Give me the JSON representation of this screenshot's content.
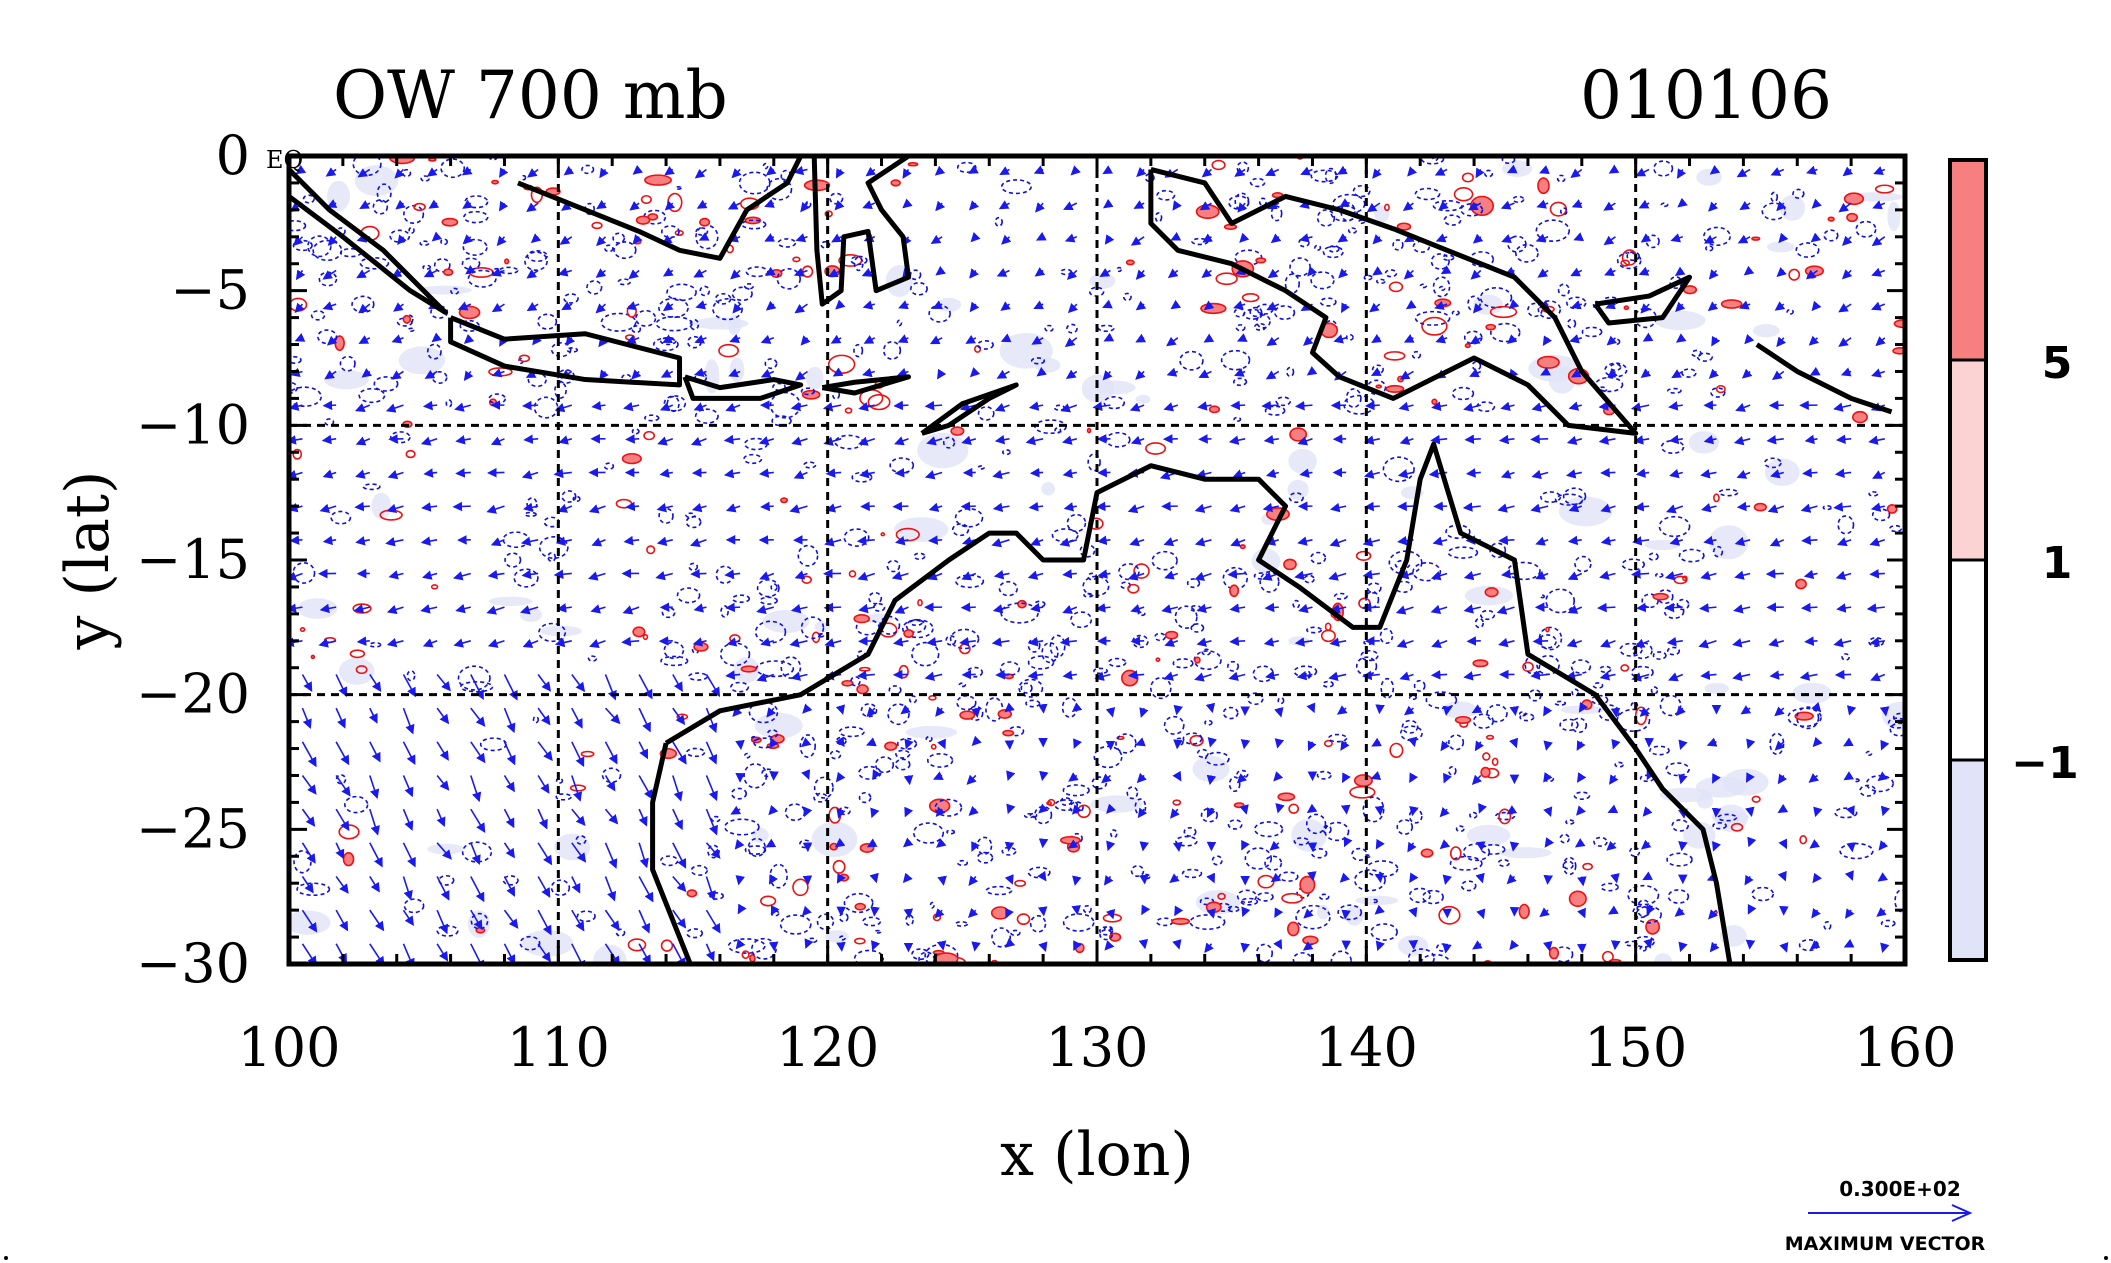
{
  "figure": {
    "title_left": "OW 700 mb",
    "title_right": "010106",
    "eq_label": "EQ",
    "xlabel": "x (lon)",
    "ylabel": "y (lat)",
    "x_ticks": [
      "100",
      "110",
      "120",
      "130",
      "140",
      "150",
      "160"
    ],
    "y_ticks": [
      "0",
      "−5",
      "−10",
      "−15",
      "−20",
      "−25",
      "−30"
    ],
    "xlim": [
      100,
      160
    ],
    "ylim": [
      -30,
      0
    ],
    "grid": "dashed every 10 degrees",
    "colorbar": {
      "labels": [
        "5",
        "1",
        "−1"
      ],
      "colors": [
        "#f87f7f",
        "#fbd3d3",
        "#ffffff",
        "#e1e4f8"
      ]
    },
    "vector_legend": {
      "value": "0.300E+02",
      "label": "MAXIMUM VECTOR",
      "color": "#1010ee"
    },
    "colors": {
      "vectors": "#1a1aee",
      "positive_contours": "#ee1111",
      "negative_contours": "#1010dd",
      "coast": "#000000"
    }
  },
  "chart_data": {
    "type": "map",
    "title": "OW 700 mb",
    "date": "010106",
    "xlabel": "x (lon)",
    "ylabel": "y (lat)",
    "xlim": [
      100,
      160
    ],
    "ylim": [
      -30,
      0
    ],
    "contour_levels": [
      -1,
      1,
      5
    ],
    "coastlines": [
      {
        "name": "sumatra",
        "points": [
          [
            100,
            -0.5
          ],
          [
            101.5,
            -2
          ],
          [
            103.5,
            -3.5
          ],
          [
            105.8,
            -5.8
          ],
          [
            104.5,
            -5
          ],
          [
            102,
            -3
          ],
          [
            100,
            -1.5
          ]
        ]
      },
      {
        "name": "borneo",
        "points": [
          [
            108.5,
            -1
          ],
          [
            110,
            -1.6
          ],
          [
            113,
            -2.8
          ],
          [
            114.5,
            -3.5
          ],
          [
            116,
            -3.8
          ],
          [
            117,
            -2
          ],
          [
            118.5,
            -1
          ],
          [
            119,
            0
          ]
        ]
      },
      {
        "name": "java",
        "points": [
          [
            106,
            -6
          ],
          [
            108,
            -6.8
          ],
          [
            111,
            -6.6
          ],
          [
            114.5,
            -7.5
          ],
          [
            114.5,
            -8.5
          ],
          [
            111,
            -8.3
          ],
          [
            108,
            -7.8
          ],
          [
            106,
            -6.9
          ],
          [
            106,
            -6
          ]
        ]
      },
      {
        "name": "sulawesi",
        "points": [
          [
            119.5,
            0
          ],
          [
            119.6,
            -3.5
          ],
          [
            119.8,
            -5.5
          ],
          [
            120.5,
            -5
          ],
          [
            120.6,
            -3
          ],
          [
            121.5,
            -2.8
          ],
          [
            121.8,
            -5
          ],
          [
            123,
            -4.5
          ],
          [
            122.8,
            -3
          ],
          [
            122,
            -2
          ],
          [
            121.5,
            -1
          ],
          [
            123,
            0
          ]
        ]
      },
      {
        "name": "bali-lombok-sumbawa",
        "points": [
          [
            114.7,
            -8.2
          ],
          [
            116,
            -8.6
          ],
          [
            118,
            -8.3
          ],
          [
            119,
            -8.5
          ],
          [
            117.5,
            -9
          ],
          [
            115,
            -9
          ],
          [
            114.7,
            -8.2
          ]
        ]
      },
      {
        "name": "flores",
        "points": [
          [
            119.8,
            -8.6
          ],
          [
            121,
            -8.4
          ],
          [
            123,
            -8.2
          ],
          [
            121,
            -8.8
          ],
          [
            119.8,
            -8.6
          ]
        ]
      },
      {
        "name": "timor",
        "points": [
          [
            123.5,
            -10.3
          ],
          [
            125,
            -9.2
          ],
          [
            127,
            -8.5
          ],
          [
            126,
            -9
          ],
          [
            124.5,
            -10
          ],
          [
            123.5,
            -10.3
          ]
        ]
      },
      {
        "name": "new-guinea",
        "points": [
          [
            132,
            -0.5
          ],
          [
            134,
            -1
          ],
          [
            135,
            -2.5
          ],
          [
            137,
            -1.5
          ],
          [
            139,
            -2
          ],
          [
            141,
            -2.7
          ],
          [
            143,
            -3.5
          ],
          [
            145.5,
            -4.5
          ],
          [
            147,
            -6
          ],
          [
            148,
            -8
          ],
          [
            150,
            -10.3
          ],
          [
            147.5,
            -10
          ],
          [
            146,
            -8.5
          ],
          [
            144,
            -7.5
          ],
          [
            141,
            -9
          ],
          [
            139,
            -8.2
          ],
          [
            138,
            -7.3
          ],
          [
            138.5,
            -6
          ],
          [
            137,
            -5
          ],
          [
            135,
            -4
          ],
          [
            133,
            -3.5
          ],
          [
            132,
            -2.5
          ],
          [
            132,
            -0.5
          ]
        ]
      },
      {
        "name": "new-britain",
        "points": [
          [
            148.5,
            -5.5
          ],
          [
            150.5,
            -5.2
          ],
          [
            152,
            -4.5
          ],
          [
            151,
            -6
          ],
          [
            149,
            -6.2
          ],
          [
            148.5,
            -5.5
          ]
        ]
      },
      {
        "name": "australia",
        "points": [
          [
            114,
            -21.8
          ],
          [
            116,
            -20.6
          ],
          [
            119,
            -20
          ],
          [
            121.5,
            -18.5
          ],
          [
            122.5,
            -16.5
          ],
          [
            124.5,
            -15
          ],
          [
            126,
            -14
          ],
          [
            127,
            -14
          ],
          [
            128,
            -15
          ],
          [
            129.5,
            -15
          ],
          [
            130,
            -12.5
          ],
          [
            132,
            -11.5
          ],
          [
            134,
            -12
          ],
          [
            136,
            -12
          ],
          [
            137,
            -13
          ],
          [
            136,
            -15
          ],
          [
            137.5,
            -16
          ],
          [
            139.5,
            -17.5
          ],
          [
            140.5,
            -17.5
          ],
          [
            141.5,
            -15
          ],
          [
            142,
            -12
          ],
          [
            142.5,
            -10.7
          ],
          [
            143.5,
            -14
          ],
          [
            145.5,
            -15
          ],
          [
            146,
            -18.5
          ],
          [
            148.5,
            -20
          ],
          [
            150,
            -22
          ],
          [
            151,
            -23.5
          ],
          [
            152.5,
            -25
          ],
          [
            153,
            -27
          ],
          [
            153.5,
            -30
          ],
          [
            114.9,
            -30
          ],
          [
            113.5,
            -26.5
          ],
          [
            113.5,
            -24
          ],
          [
            114,
            -21.8
          ]
        ]
      },
      {
        "name": "tasmania-region-edge",
        "points": [
          [
            154.5,
            -7
          ],
          [
            156,
            -8
          ],
          [
            158,
            -9
          ],
          [
            159.5,
            -9.5
          ]
        ]
      }
    ],
    "legend_vector": {
      "max": 30
    }
  }
}
